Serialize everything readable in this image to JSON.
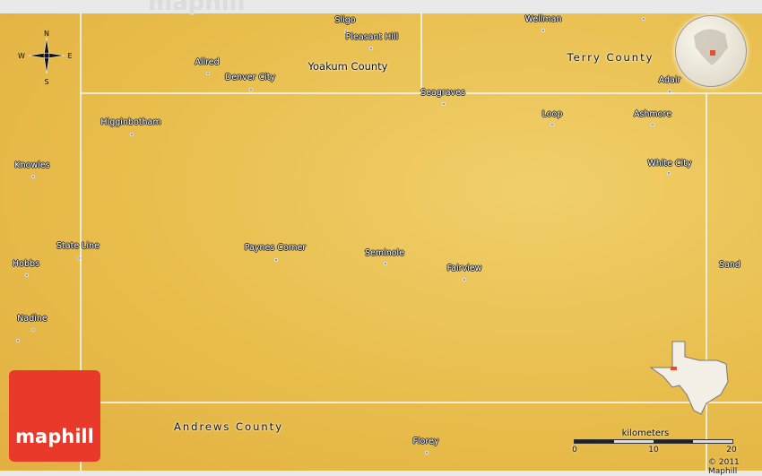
{
  "watermark": "maphill",
  "logo": "maphill",
  "compass": {
    "n": "N",
    "s": "S",
    "e": "E",
    "w": "W"
  },
  "counties": [
    "Yoakum County",
    "Terry County",
    "Andrews County"
  ],
  "places": [
    "Sligo",
    "Pleasant Hill",
    "Allred",
    "Denver City",
    "Seagraves",
    "Wellman",
    "Adair",
    "Loop",
    "Ashmore",
    "White City",
    "Higginbotham",
    "Knowles",
    "State Line",
    "Hobbs",
    "Nadine",
    "Paynes Corner",
    "Seminole",
    "Fairview",
    "Sand",
    "Florey"
  ],
  "scale": {
    "unit": "kilometers",
    "ticks": [
      "0",
      "10",
      "20"
    ]
  },
  "copyright": "© 2011 Maphill",
  "colors": {
    "terrain": "#e8bd4c",
    "logo": "#e8392a",
    "highlight": "#e8502a"
  }
}
